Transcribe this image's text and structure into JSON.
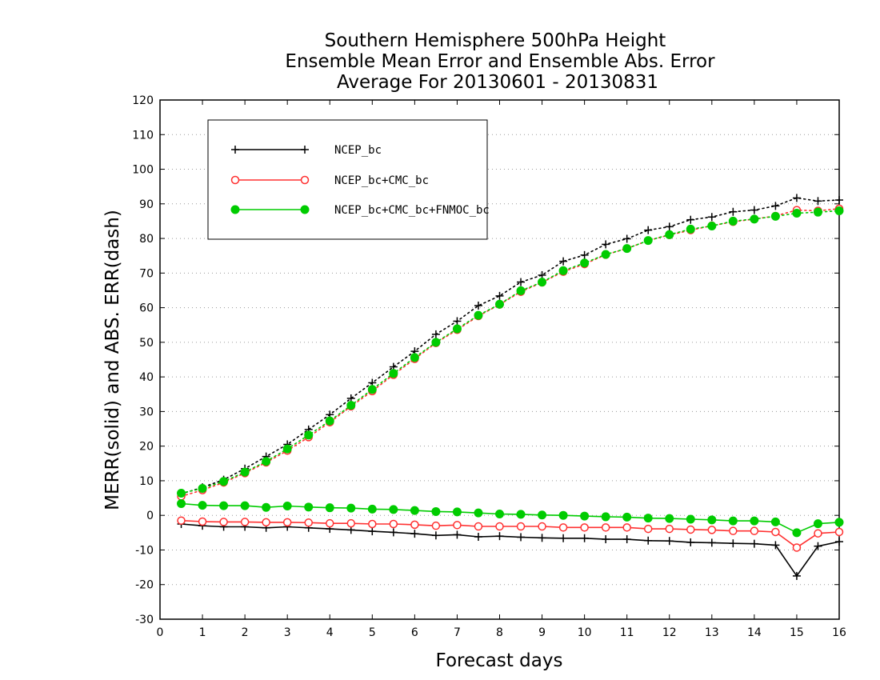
{
  "chart_data": {
    "type": "line",
    "title": [
      "Southern Hemisphere 500hPa Height",
      "Ensemble Mean Error and Ensemble Abs. Error",
      "Average For 20130601 - 20130831"
    ],
    "xlabel": "Forecast days",
    "ylabel": "MERR(solid) and ABS. ERR(dash)",
    "xlim": [
      0,
      16
    ],
    "ylim": [
      -30,
      120
    ],
    "xticks": [
      0,
      1,
      2,
      3,
      4,
      5,
      6,
      7,
      8,
      9,
      10,
      11,
      12,
      13,
      14,
      15,
      16
    ],
    "yticks": [
      -30,
      -20,
      -10,
      0,
      10,
      20,
      30,
      40,
      50,
      60,
      70,
      80,
      90,
      100,
      110,
      120
    ],
    "grid": true,
    "legend_position": "top-left",
    "x": [
      0.5,
      1,
      1.5,
      2,
      2.5,
      3,
      3.5,
      4,
      4.5,
      5,
      5.5,
      6,
      6.5,
      7,
      7.5,
      8,
      8.5,
      9,
      9.5,
      10,
      10.5,
      11,
      11.5,
      12,
      12.5,
      13,
      13.5,
      14,
      14.5,
      15,
      15.5,
      16
    ],
    "series": [
      {
        "name": "NCEP_bc",
        "color": "#000000",
        "marker": "plus",
        "merr": [
          -2.5,
          -3,
          -3.3,
          -3.3,
          -3.6,
          -3.3,
          -3.6,
          -3.9,
          -4.2,
          -4.6,
          -4.9,
          -5.3,
          -5.8,
          -5.6,
          -6.2,
          -6.0,
          -6.3,
          -6.5,
          -6.6,
          -6.6,
          -6.9,
          -6.9,
          -7.3,
          -7.4,
          -7.8,
          -7.9,
          -8.1,
          -8.2,
          -8.6,
          -17.5,
          -8.9,
          -7.6
        ],
        "abs_err": [
          6.2,
          8.1,
          10.3,
          13.5,
          17,
          20.5,
          24.8,
          29.1,
          33.8,
          38.3,
          42.9,
          47.4,
          52.3,
          56.1,
          60.6,
          63.4,
          67.4,
          69.4,
          73.4,
          75.2,
          78.3,
          79.9,
          82.4,
          83.4,
          85.4,
          86.2,
          87.7,
          88.2,
          89.4,
          91.7,
          90.8,
          91.1
        ]
      },
      {
        "name": "NCEP_bc+CMC_bc",
        "color": "#ff3030",
        "marker": "open-circle",
        "merr": [
          -1.5,
          -1.8,
          -1.9,
          -1.9,
          -2.0,
          -2.0,
          -2.1,
          -2.3,
          -2.3,
          -2.5,
          -2.5,
          -2.7,
          -3.0,
          -2.8,
          -3.2,
          -3.2,
          -3.2,
          -3.2,
          -3.5,
          -3.5,
          -3.5,
          -3.5,
          -3.9,
          -3.9,
          -4.1,
          -4.2,
          -4.5,
          -4.5,
          -4.8,
          -9.3,
          -5.2,
          -4.8
        ],
        "abs_err": [
          5.5,
          7.3,
          9.5,
          12.2,
          15.3,
          18.7,
          22.6,
          26.9,
          31.5,
          35.9,
          40.6,
          45.2,
          49.8,
          53.6,
          57.6,
          60.9,
          64.6,
          67.3,
          70.4,
          72.6,
          75.3,
          77.1,
          79.4,
          81.0,
          82.4,
          83.7,
          84.8,
          85.6,
          86.5,
          88.2,
          88.0,
          88.6
        ]
      },
      {
        "name": "NCEP_bc+CMC_bc+FNMOC_bc",
        "color": "#00cc00",
        "marker": "filled-circle",
        "merr": [
          3.4,
          2.9,
          2.8,
          2.8,
          2.3,
          2.7,
          2.4,
          2.2,
          2.1,
          1.8,
          1.7,
          1.4,
          1.1,
          1.0,
          0.7,
          0.4,
          0.3,
          0.1,
          0.0,
          -0.2,
          -0.4,
          -0.5,
          -0.8,
          -0.9,
          -1.1,
          -1.3,
          -1.6,
          -1.6,
          -1.9,
          -5.0,
          -2.4,
          -2.0
        ],
        "abs_err": [
          6.4,
          7.8,
          9.8,
          12.5,
          15.6,
          19.2,
          23.2,
          27.3,
          31.8,
          36.4,
          41.0,
          45.6,
          50.0,
          53.9,
          57.8,
          61.0,
          64.9,
          67.4,
          70.7,
          72.9,
          75.4,
          77.1,
          79.4,
          81.1,
          82.7,
          83.6,
          85.0,
          85.6,
          86.4,
          87.3,
          87.6,
          88.0
        ]
      }
    ]
  }
}
